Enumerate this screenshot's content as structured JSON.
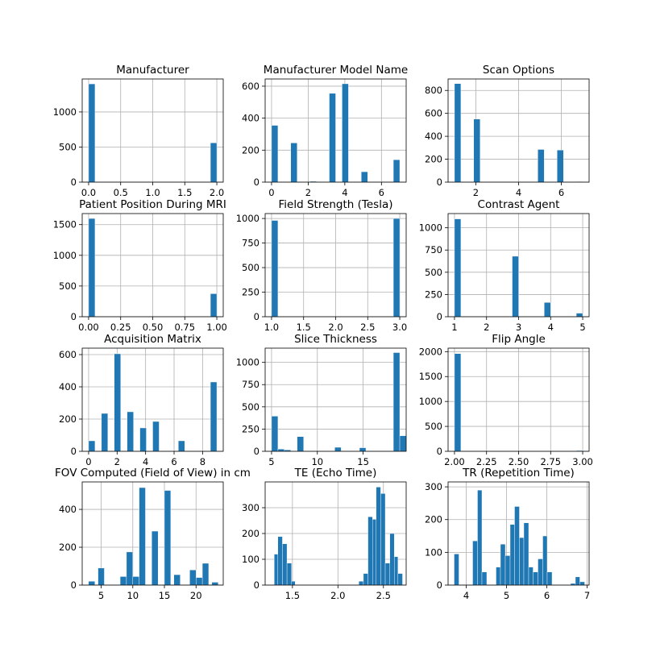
{
  "figure": {
    "background": "#ffffff",
    "bar_color": "#1f77b4",
    "grid": true
  },
  "chart_data": [
    {
      "type": "bar",
      "title": "Manufacturer",
      "xlim": [
        -0.1,
        2.1
      ],
      "ylim": [
        0,
        1470
      ],
      "xticks": [
        0.0,
        0.5,
        1.0,
        1.5,
        2.0
      ],
      "xticklabels": [
        "0.0",
        "0.5",
        "1.0",
        "1.5",
        "2.0"
      ],
      "yticks": [
        0,
        500,
        1000
      ],
      "yticklabels": [
        "0",
        "500",
        "1000"
      ],
      "bars": [
        {
          "x0": 0.0,
          "x1": 0.1,
          "y": 1400
        },
        {
          "x0": 1.9,
          "x1": 2.0,
          "y": 560
        }
      ]
    },
    {
      "type": "bar",
      "title": "Manufacturer Model Name",
      "xlim": [
        -0.35,
        7.35
      ],
      "ylim": [
        0,
        645
      ],
      "xticks": [
        0,
        2,
        4,
        6
      ],
      "xticklabels": [
        "0",
        "2",
        "4",
        "6"
      ],
      "yticks": [
        0,
        200,
        400,
        600
      ],
      "yticklabels": [
        "0",
        "200",
        "400",
        "600"
      ],
      "bars": [
        {
          "x0": 0.0,
          "x1": 0.35,
          "y": 355
        },
        {
          "x0": 1.05,
          "x1": 1.4,
          "y": 245
        },
        {
          "x0": 2.1,
          "x1": 2.45,
          "y": 5
        },
        {
          "x0": 3.15,
          "x1": 3.5,
          "y": 555
        },
        {
          "x0": 3.85,
          "x1": 4.2,
          "y": 615
        },
        {
          "x0": 4.9,
          "x1": 5.25,
          "y": 65
        },
        {
          "x0": 6.65,
          "x1": 7.0,
          "y": 140
        }
      ]
    },
    {
      "type": "bar",
      "title": "Scan Options",
      "xlim": [
        0.7,
        7.3
      ],
      "ylim": [
        0,
        900
      ],
      "xticks": [
        2,
        4,
        6
      ],
      "xticklabels": [
        "2",
        "4",
        "6"
      ],
      "yticks": [
        0,
        200,
        400,
        600,
        800
      ],
      "yticklabels": [
        "0",
        "200",
        "400",
        "600",
        "800"
      ],
      "bars": [
        {
          "x0": 1.0,
          "x1": 1.3,
          "y": 860
        },
        {
          "x0": 1.9,
          "x1": 2.2,
          "y": 550
        },
        {
          "x0": 4.9,
          "x1": 5.2,
          "y": 285
        },
        {
          "x0": 5.8,
          "x1": 6.1,
          "y": 280
        },
        {
          "x0": 6.7,
          "x1": 7.0,
          "y": 5
        }
      ]
    },
    {
      "type": "bar",
      "title": "Patient Position During MRI",
      "xlim": [
        -0.05,
        1.05
      ],
      "ylim": [
        0,
        1680
      ],
      "xticks": [
        0.0,
        0.25,
        0.5,
        0.75,
        1.0
      ],
      "xticklabels": [
        "0.00",
        "0.25",
        "0.50",
        "0.75",
        "1.00"
      ],
      "yticks": [
        0,
        500,
        1000,
        1500
      ],
      "yticklabels": [
        "0",
        "500",
        "1000",
        "1500"
      ],
      "bars": [
        {
          "x0": 0.0,
          "x1": 0.05,
          "y": 1600
        },
        {
          "x0": 0.95,
          "x1": 1.0,
          "y": 375
        }
      ]
    },
    {
      "type": "bar",
      "title": "Field Strength (Tesla)",
      "xlim": [
        0.9,
        3.1
      ],
      "ylim": [
        0,
        1050
      ],
      "xticks": [
        1.0,
        1.5,
        2.0,
        2.5,
        3.0
      ],
      "xticklabels": [
        "1.0",
        "1.5",
        "2.0",
        "2.5",
        "3.0"
      ],
      "yticks": [
        0,
        250,
        500,
        750,
        1000
      ],
      "yticklabels": [
        "0",
        "250",
        "500",
        "750",
        "1000"
      ],
      "bars": [
        {
          "x0": 1.0,
          "x1": 1.1,
          "y": 980
        },
        {
          "x0": 2.9,
          "x1": 3.0,
          "y": 1000
        }
      ]
    },
    {
      "type": "bar",
      "title": "Contrast Agent",
      "xlim": [
        0.8,
        5.2
      ],
      "ylim": [
        0,
        1160
      ],
      "xticks": [
        1,
        2,
        3,
        4,
        5
      ],
      "xticklabels": [
        "1",
        "2",
        "3",
        "4",
        "5"
      ],
      "yticks": [
        0,
        250,
        500,
        750,
        1000
      ],
      "yticklabels": [
        "0",
        "250",
        "500",
        "750",
        "1000"
      ],
      "bars": [
        {
          "x0": 1.0,
          "x1": 1.2,
          "y": 1100
        },
        {
          "x0": 2.8,
          "x1": 3.0,
          "y": 680
        },
        {
          "x0": 3.8,
          "x1": 4.0,
          "y": 160
        },
        {
          "x0": 4.8,
          "x1": 5.0,
          "y": 40
        }
      ]
    },
    {
      "type": "bar",
      "title": "Acquisition Matrix",
      "xlim": [
        -0.45,
        9.45
      ],
      "ylim": [
        0,
        640
      ],
      "xticks": [
        0,
        2,
        4,
        6,
        8
      ],
      "xticklabels": [
        "0",
        "2",
        "4",
        "6",
        "8"
      ],
      "yticks": [
        0,
        200,
        400,
        600
      ],
      "yticklabels": [
        "0",
        "200",
        "400",
        "600"
      ],
      "bars": [
        {
          "x0": 0.0,
          "x1": 0.45,
          "y": 65
        },
        {
          "x0": 0.9,
          "x1": 1.35,
          "y": 235
        },
        {
          "x0": 1.8,
          "x1": 2.25,
          "y": 605
        },
        {
          "x0": 2.7,
          "x1": 3.15,
          "y": 245
        },
        {
          "x0": 3.6,
          "x1": 4.05,
          "y": 145
        },
        {
          "x0": 4.5,
          "x1": 4.95,
          "y": 185
        },
        {
          "x0": 6.3,
          "x1": 6.75,
          "y": 65
        },
        {
          "x0": 8.55,
          "x1": 9.0,
          "y": 430
        }
      ]
    },
    {
      "type": "bar",
      "title": "Slice Thickness",
      "xlim": [
        4.3,
        19.7
      ],
      "ylim": [
        0,
        1160
      ],
      "xticks": [
        5,
        10,
        15
      ],
      "xticklabels": [
        "5",
        "10",
        "15"
      ],
      "yticks": [
        0,
        250,
        500,
        750,
        1000
      ],
      "yticklabels": [
        "0",
        "250",
        "500",
        "750",
        "1000"
      ],
      "bars": [
        {
          "x0": 5.0,
          "x1": 5.7,
          "y": 395
        },
        {
          "x0": 5.7,
          "x1": 6.4,
          "y": 25
        },
        {
          "x0": 6.4,
          "x1": 7.1,
          "y": 15
        },
        {
          "x0": 7.8,
          "x1": 8.5,
          "y": 165
        },
        {
          "x0": 11.9,
          "x1": 12.6,
          "y": 45
        },
        {
          "x0": 14.6,
          "x1": 15.3,
          "y": 40
        },
        {
          "x0": 18.3,
          "x1": 19.0,
          "y": 1110
        },
        {
          "x0": 19.0,
          "x1": 19.7,
          "y": 175
        }
      ]
    },
    {
      "type": "bar",
      "title": "Flip Angle",
      "xlim": [
        1.95,
        3.05
      ],
      "ylim": [
        0,
        2070
      ],
      "xticks": [
        2.0,
        2.25,
        2.5,
        2.75,
        3.0
      ],
      "xticklabels": [
        "2.00",
        "2.25",
        "2.50",
        "2.75",
        "3.00"
      ],
      "yticks": [
        0,
        500,
        1000,
        1500,
        2000
      ],
      "yticklabels": [
        "0",
        "500",
        "1000",
        "1500",
        "2000"
      ],
      "bars": [
        {
          "x0": 2.0,
          "x1": 2.05,
          "y": 1960
        },
        {
          "x0": 2.95,
          "x1": 3.0,
          "y": 15
        }
      ]
    },
    {
      "type": "bar",
      "title": "FOV Computed (Field of View) in cm",
      "xlim": [
        2.0,
        24.3
      ],
      "ylim": [
        0,
        545
      ],
      "xticks": [
        5,
        10,
        15,
        20
      ],
      "xticklabels": [
        "5",
        "10",
        "15",
        "20"
      ],
      "yticks": [
        0,
        200,
        400
      ],
      "yticklabels": [
        "0",
        "200",
        "400"
      ],
      "bars": [
        {
          "x0": 3.0,
          "x1": 4.0,
          "y": 20
        },
        {
          "x0": 4.5,
          "x1": 5.5,
          "y": 90
        },
        {
          "x0": 8.0,
          "x1": 9.0,
          "y": 45
        },
        {
          "x0": 9.0,
          "x1": 10.0,
          "y": 175
        },
        {
          "x0": 10.0,
          "x1": 11.0,
          "y": 45
        },
        {
          "x0": 11.0,
          "x1": 12.0,
          "y": 515
        },
        {
          "x0": 13.0,
          "x1": 14.0,
          "y": 285
        },
        {
          "x0": 15.0,
          "x1": 16.0,
          "y": 500
        },
        {
          "x0": 16.5,
          "x1": 17.5,
          "y": 55
        },
        {
          "x0": 19.0,
          "x1": 20.0,
          "y": 80
        },
        {
          "x0": 20.0,
          "x1": 21.0,
          "y": 40
        },
        {
          "x0": 21.0,
          "x1": 22.0,
          "y": 115
        },
        {
          "x0": 22.5,
          "x1": 23.5,
          "y": 15
        }
      ]
    },
    {
      "type": "bar",
      "title": "TE (Echo Time)",
      "xlim": [
        1.2,
        2.75
      ],
      "ylim": [
        0,
        400
      ],
      "xticks": [
        1.5,
        2.0,
        2.5
      ],
      "xticklabels": [
        "1.5",
        "2.0",
        "2.5"
      ],
      "yticks": [
        0,
        100,
        200,
        300
      ],
      "yticklabels": [
        "0",
        "100",
        "200",
        "300"
      ],
      "bars": [
        {
          "x0": 1.3,
          "x1": 1.34,
          "y": 120
        },
        {
          "x0": 1.34,
          "x1": 1.39,
          "y": 188
        },
        {
          "x0": 1.39,
          "x1": 1.44,
          "y": 160
        },
        {
          "x0": 1.44,
          "x1": 1.49,
          "y": 85
        },
        {
          "x0": 1.49,
          "x1": 1.53,
          "y": 15
        },
        {
          "x0": 2.23,
          "x1": 2.28,
          "y": 15
        },
        {
          "x0": 2.28,
          "x1": 2.33,
          "y": 45
        },
        {
          "x0": 2.33,
          "x1": 2.38,
          "y": 265
        },
        {
          "x0": 2.38,
          "x1": 2.42,
          "y": 255
        },
        {
          "x0": 2.42,
          "x1": 2.47,
          "y": 380
        },
        {
          "x0": 2.47,
          "x1": 2.52,
          "y": 355
        },
        {
          "x0": 2.52,
          "x1": 2.57,
          "y": 85
        },
        {
          "x0": 2.57,
          "x1": 2.62,
          "y": 200
        },
        {
          "x0": 2.62,
          "x1": 2.66,
          "y": 110
        },
        {
          "x0": 2.66,
          "x1": 2.71,
          "y": 45
        }
      ]
    },
    {
      "type": "bar",
      "title": "TR (Repetition Time)",
      "xlim": [
        3.55,
        7.05
      ],
      "ylim": [
        0,
        315
      ],
      "xticks": [
        4,
        5,
        6,
        7
      ],
      "xticklabels": [
        "4",
        "5",
        "6",
        "7"
      ],
      "yticks": [
        0,
        100,
        200,
        300
      ],
      "yticklabels": [
        "0",
        "100",
        "200",
        "300"
      ],
      "bars": [
        {
          "x0": 3.7,
          "x1": 3.82,
          "y": 95
        },
        {
          "x0": 4.16,
          "x1": 4.28,
          "y": 135
        },
        {
          "x0": 4.28,
          "x1": 4.39,
          "y": 290
        },
        {
          "x0": 4.39,
          "x1": 4.51,
          "y": 40
        },
        {
          "x0": 4.74,
          "x1": 4.85,
          "y": 55
        },
        {
          "x0": 4.85,
          "x1": 4.97,
          "y": 125
        },
        {
          "x0": 4.97,
          "x1": 5.09,
          "y": 90
        },
        {
          "x0": 5.09,
          "x1": 5.2,
          "y": 185
        },
        {
          "x0": 5.2,
          "x1": 5.32,
          "y": 240
        },
        {
          "x0": 5.32,
          "x1": 5.43,
          "y": 145
        },
        {
          "x0": 5.43,
          "x1": 5.55,
          "y": 190
        },
        {
          "x0": 5.55,
          "x1": 5.66,
          "y": 55
        },
        {
          "x0": 5.66,
          "x1": 5.78,
          "y": 40
        },
        {
          "x0": 5.78,
          "x1": 5.9,
          "y": 80
        },
        {
          "x0": 5.9,
          "x1": 6.01,
          "y": 150
        },
        {
          "x0": 6.01,
          "x1": 6.13,
          "y": 40
        },
        {
          "x0": 6.59,
          "x1": 6.71,
          "y": 5
        },
        {
          "x0": 6.71,
          "x1": 6.82,
          "y": 25
        },
        {
          "x0": 6.82,
          "x1": 6.94,
          "y": 10
        }
      ]
    }
  ]
}
